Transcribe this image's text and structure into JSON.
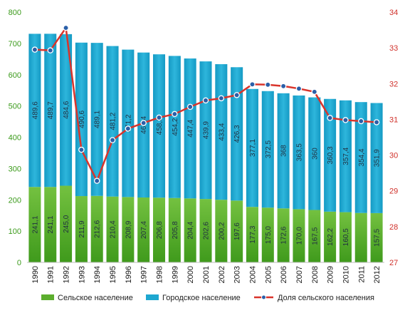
{
  "chart_data": {
    "type": "bar",
    "categories": [
      "1990",
      "1991",
      "1992",
      "1993",
      "1994",
      "1995",
      "1996",
      "1997",
      "1998",
      "1999",
      "2000",
      "2001",
      "2002",
      "2003",
      "2004",
      "2005",
      "2006",
      "2007",
      "2008",
      "2009",
      "2010",
      "2011",
      "2012"
    ],
    "series": [
      {
        "name": "Сельское население",
        "values": [
          241.1,
          241.1,
          245.0,
          211.9,
          212.6,
          210.4,
          208.9,
          207.4,
          206.8,
          205.8,
          204.4,
          202.6,
          200.2,
          197.6,
          177.3,
          175.0,
          172.6,
          170.0,
          167.5,
          162.2,
          160.5,
          158.0,
          157.5
        ],
        "labels": [
          "241,1",
          "241,1",
          "245,0",
          "211,9",
          "212,6",
          "210,4",
          "208,9",
          "207,4",
          "206,8",
          "205,8",
          "204,4",
          "202,6",
          "200,2",
          "197,6",
          "177,3",
          "175,0",
          "172,6",
          "170,0",
          "167,5",
          "162,2",
          "160,5",
          "",
          "157,5"
        ],
        "color": "#5cae2e"
      },
      {
        "name": "Городское население",
        "values": [
          489.6,
          489.7,
          484.6,
          490.6,
          489.1,
          481.2,
          471.2,
          463.4,
          458.3,
          454.2,
          447.4,
          439.9,
          433.4,
          426.3,
          377.1,
          372.5,
          368,
          363.5,
          360,
          360.3,
          357.4,
          354.4,
          351.9
        ],
        "labels": [
          "489,6",
          "489,7",
          "484,6",
          "490,6",
          "489,1",
          "481,2",
          "471,2",
          "463,4",
          "458,3",
          "454,2",
          "447,4",
          "439,9",
          "433,4",
          "426,3",
          "377,1",
          "372,5",
          "368",
          "363,5",
          "360",
          "360,3",
          "357,4",
          "354,4",
          "351,9"
        ],
        "color": "#1ea7d0"
      },
      {
        "name": "Доля сельского населения",
        "type": "line",
        "axis": "right",
        "values": [
          32.95,
          32.93,
          33.56,
          30.15,
          29.28,
          30.42,
          30.74,
          30.9,
          31.05,
          31.15,
          31.35,
          31.53,
          31.59,
          31.68,
          31.98,
          31.97,
          31.93,
          31.86,
          31.77,
          31.04,
          30.98,
          30.95,
          30.92
        ],
        "color": "#d9342b"
      }
    ],
    "ylim": [
      0,
      800
    ],
    "yticks": [
      0,
      100,
      200,
      300,
      400,
      500,
      600,
      700,
      800
    ],
    "y2lim": [
      27,
      34
    ],
    "y2ticks": [
      27,
      28,
      29,
      30,
      31,
      32,
      33,
      34
    ],
    "grid": false,
    "legend": "bottom",
    "colors": {
      "left_axis": "#3a9a1a",
      "right_axis": "#d0302a",
      "line_marker": "#2b5fa8"
    }
  }
}
